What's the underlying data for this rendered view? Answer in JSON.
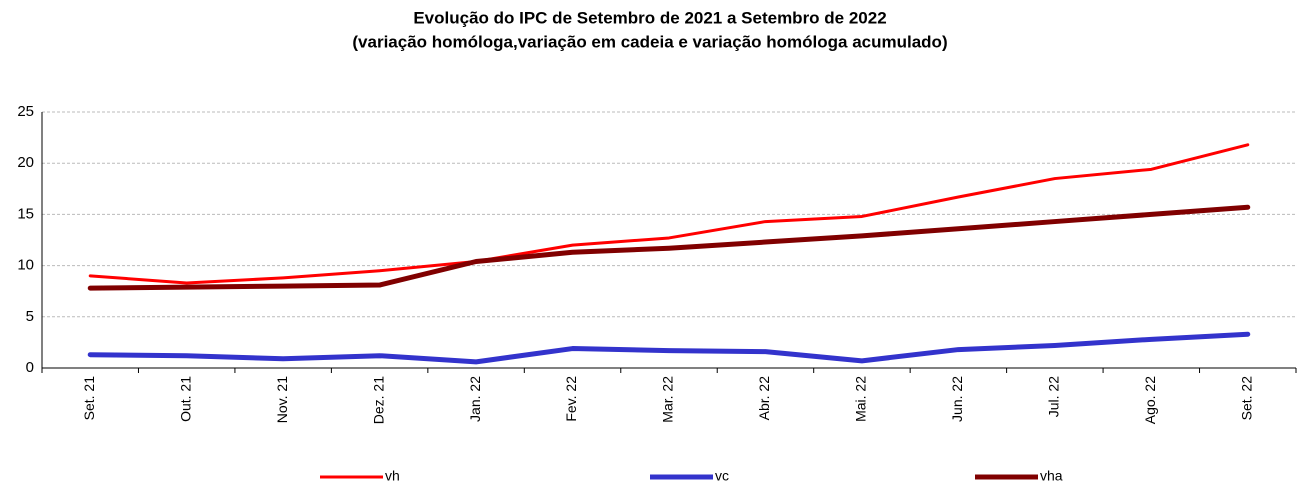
{
  "chart_data": {
    "type": "line",
    "title": "Evolução do IPC de Setembro de 2021 a Setembro de 2022",
    "subtitle": "(variação homóloga,variação em cadeia e variação homóloga acumulado)",
    "categories": [
      "Set. 21",
      "Out. 21",
      "Nov. 21",
      "Dez. 21",
      "Jan. 22",
      "Fev. 22",
      "Mar. 22",
      "Abr. 22",
      "Mai. 22",
      "Jun. 22",
      "Jul. 22",
      "Ago. 22",
      "Set. 22"
    ],
    "series": [
      {
        "name": "vh",
        "color": "#ff0000",
        "values": [
          9.0,
          8.3,
          8.8,
          9.5,
          10.4,
          12.0,
          12.7,
          14.3,
          14.8,
          16.7,
          18.5,
          19.4,
          21.8
        ]
      },
      {
        "name": "vc",
        "color": "#3333cc",
        "values": [
          1.3,
          1.2,
          0.9,
          1.2,
          0.6,
          1.9,
          1.7,
          1.6,
          0.7,
          1.8,
          2.2,
          2.8,
          3.3
        ]
      },
      {
        "name": "vha",
        "color": "#800000",
        "values": [
          7.8,
          7.9,
          8.0,
          8.1,
          10.4,
          11.3,
          11.7,
          12.3,
          12.9,
          13.6,
          14.3,
          15.0,
          15.7
        ]
      }
    ],
    "ylim": [
      0,
      25
    ],
    "yticks": [
      0,
      5,
      10,
      15,
      20,
      25
    ],
    "grid": true,
    "legend": "bottom"
  }
}
